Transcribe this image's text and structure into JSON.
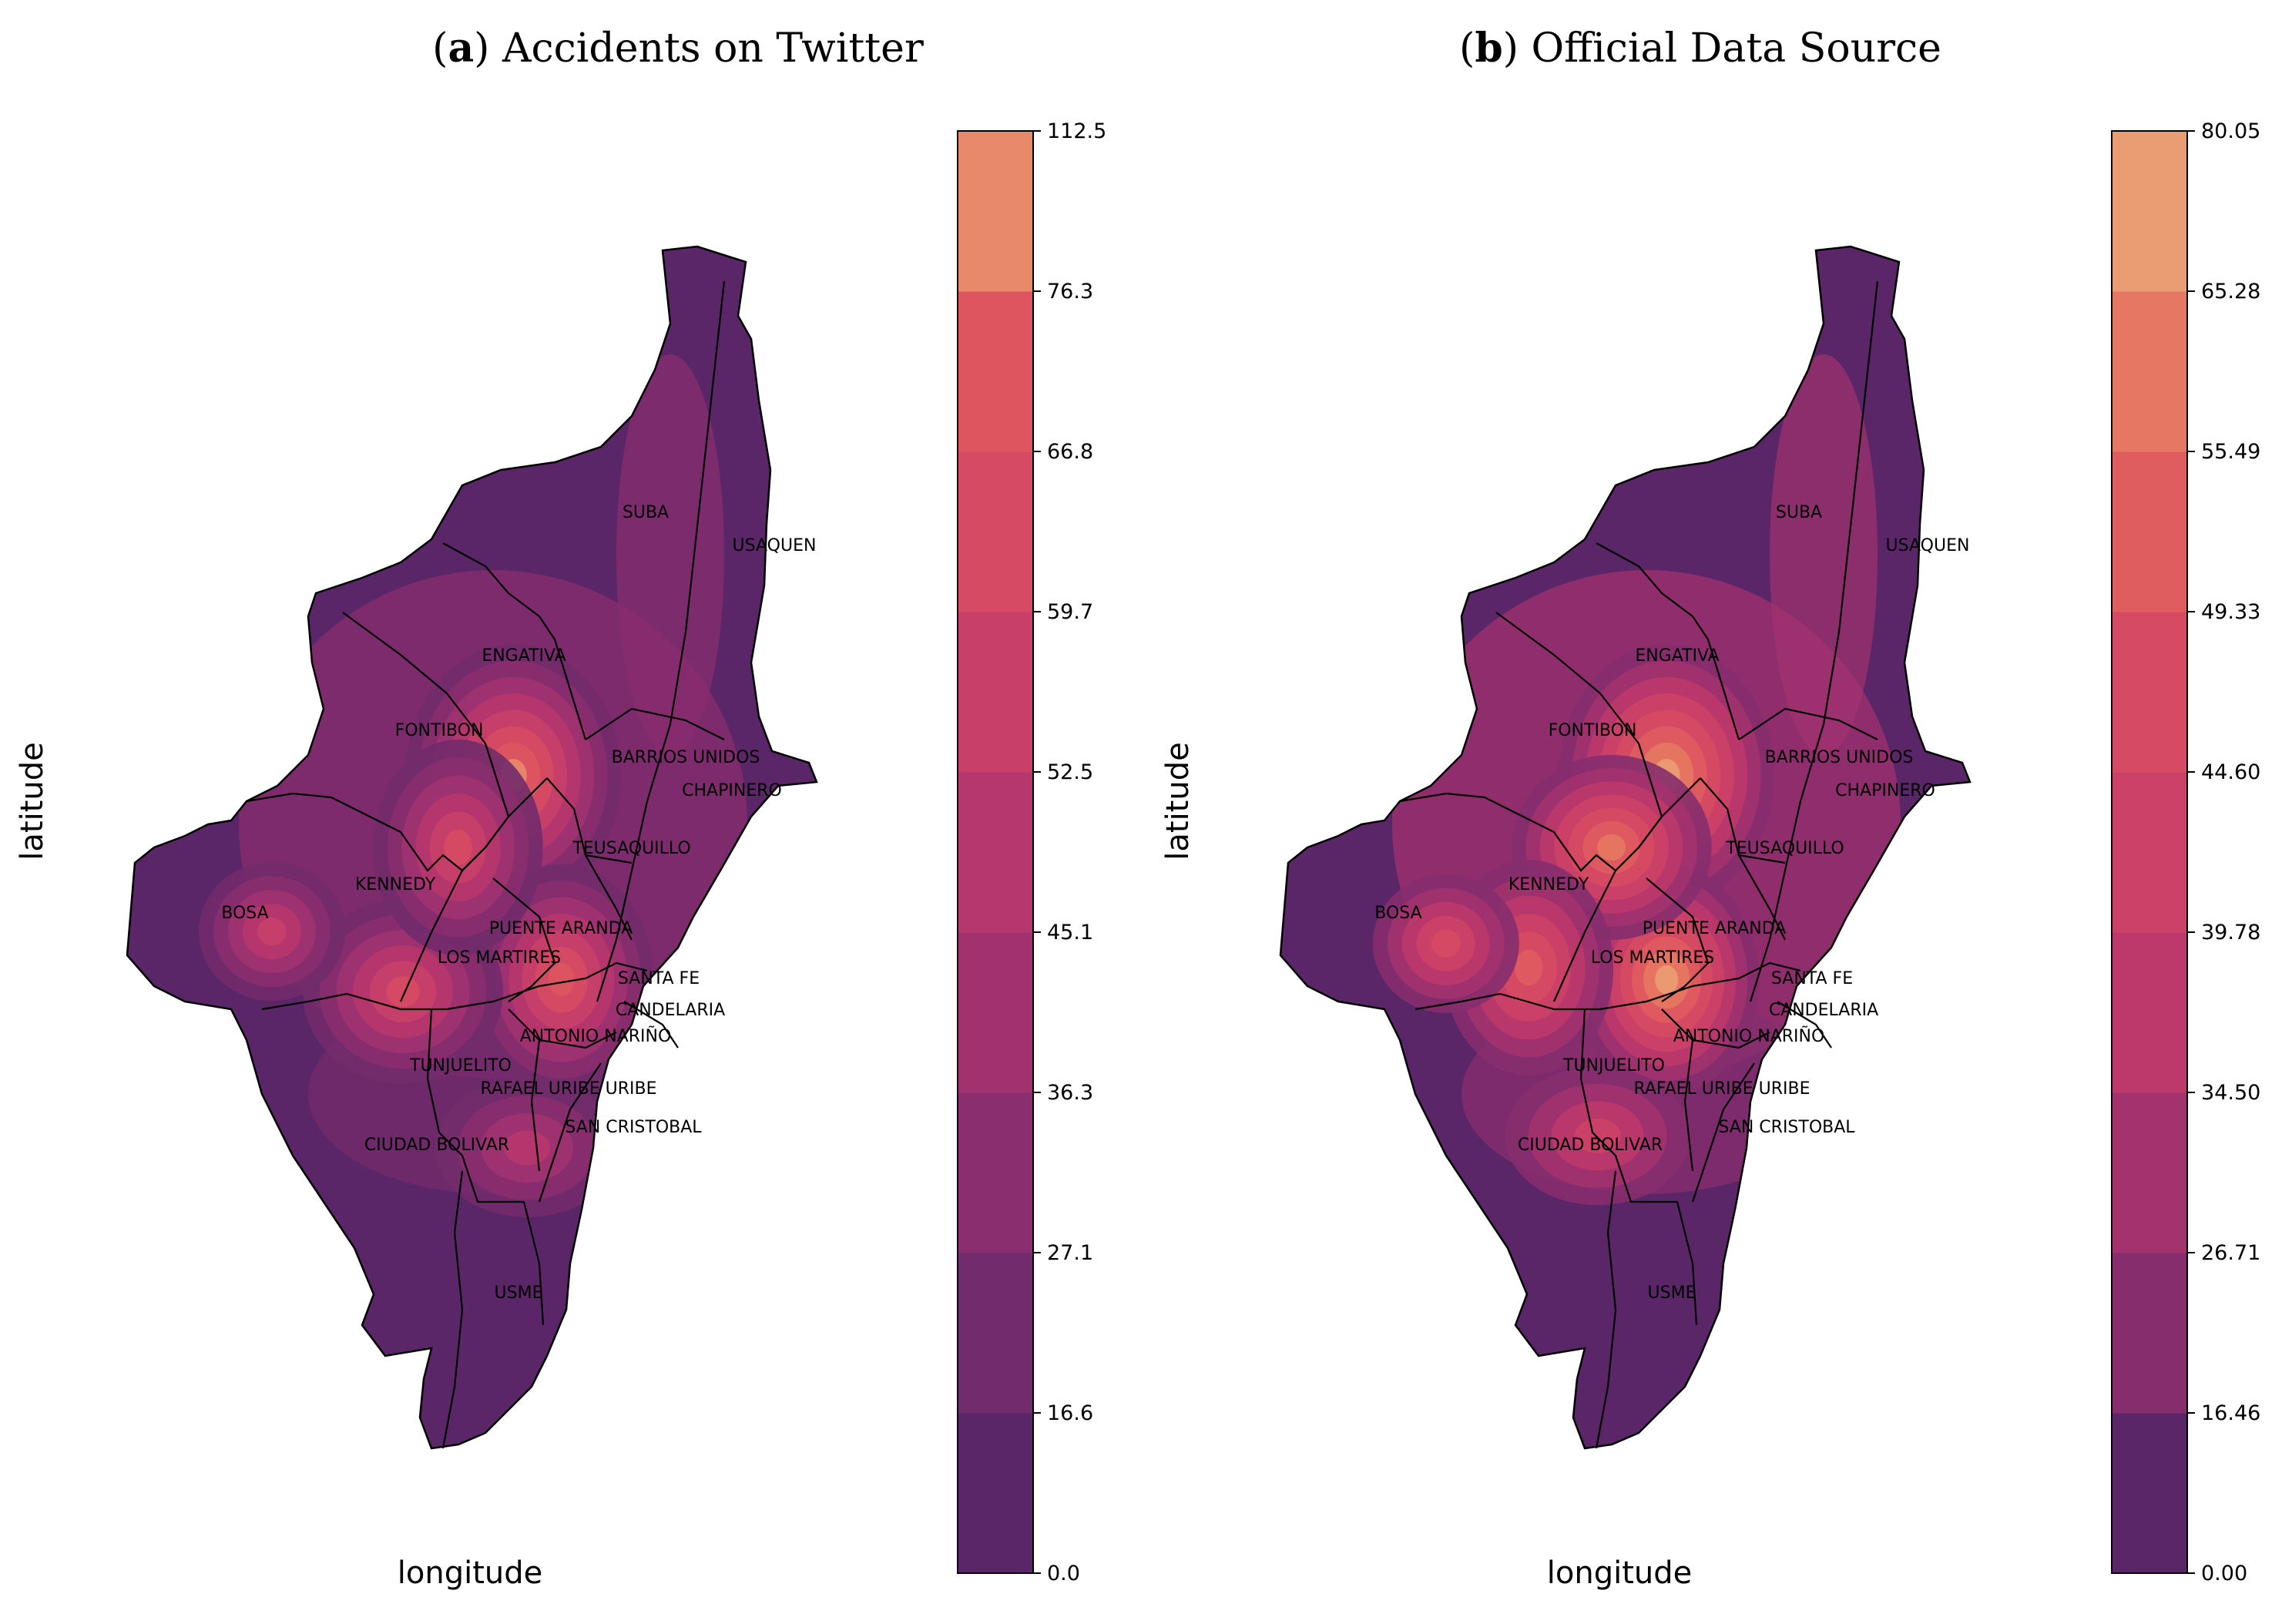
{
  "panels": [
    {
      "id": "a",
      "letter": "a",
      "title": "Accidents on Twitter",
      "xlabel": "longitude",
      "ylabel": "latitude",
      "colorbar_ticks": [
        "0.0",
        "16.6",
        "27.1",
        "36.3",
        "45.1",
        "52.5",
        "59.7",
        "66.8",
        "76.3",
        "112.5"
      ],
      "colorbar_colors": [
        "#5a2667",
        "#722b6c",
        "#8a2e6f",
        "#a1326f",
        "#b6376d",
        "#c83f69",
        "#d64a63",
        "#de5560",
        "#e88a6a"
      ],
      "hotspots": [
        {
          "lon": 0.56,
          "lat": 0.44,
          "level": 8
        },
        {
          "lon": 0.63,
          "lat": 0.61,
          "level": 7
        },
        {
          "lon": 0.4,
          "lat": 0.62,
          "level": 6
        },
        {
          "lon": 0.48,
          "lat": 0.5,
          "level": 6
        },
        {
          "lon": 0.21,
          "lat": 0.57,
          "level": 5
        },
        {
          "lon": 0.58,
          "lat": 0.75,
          "level": 4
        }
      ]
    },
    {
      "id": "b",
      "letter": "b",
      "title": "Official Data Source",
      "xlabel": "longitude",
      "ylabel": "latitude",
      "colorbar_ticks": [
        "0.00",
        "16.46",
        "26.71",
        "34.50",
        "39.78",
        "44.60",
        "49.33",
        "55.49",
        "65.28",
        "80.05"
      ],
      "colorbar_colors": [
        "#5a2667",
        "#862d6e",
        "#a3326f",
        "#bd396c",
        "#cc4167",
        "#d74a63",
        "#df5c5f",
        "#e67762",
        "#ea9d73"
      ],
      "hotspots": [
        {
          "lon": 0.56,
          "lat": 0.44,
          "level": 8
        },
        {
          "lon": 0.56,
          "lat": 0.61,
          "level": 8
        },
        {
          "lon": 0.48,
          "lat": 0.5,
          "level": 7
        },
        {
          "lon": 0.36,
          "lat": 0.6,
          "level": 6
        },
        {
          "lon": 0.24,
          "lat": 0.58,
          "level": 5
        },
        {
          "lon": 0.46,
          "lat": 0.74,
          "level": 4
        }
      ]
    }
  ],
  "localities": [
    "SUBA",
    "USAQUEN",
    "ENGATIVA",
    "FONTIBON",
    "BARRIOS UNIDOS",
    "CHAPINERO",
    "TEUSAQUILLO",
    "KENNEDY",
    "BOSA",
    "PUENTE ARANDA",
    "LOS MARTIRES",
    "SANTA FE",
    "CANDELARIA",
    "ANTONIO NARIÑO",
    "TUNJUELITO",
    "RAFAEL URIBE URIBE",
    "SAN CRISTOBAL",
    "CIUDAD BOLIVAR",
    "USME"
  ],
  "colors": {
    "boundary": "#000000",
    "background": "#ffffff",
    "base": "#5a2667"
  }
}
